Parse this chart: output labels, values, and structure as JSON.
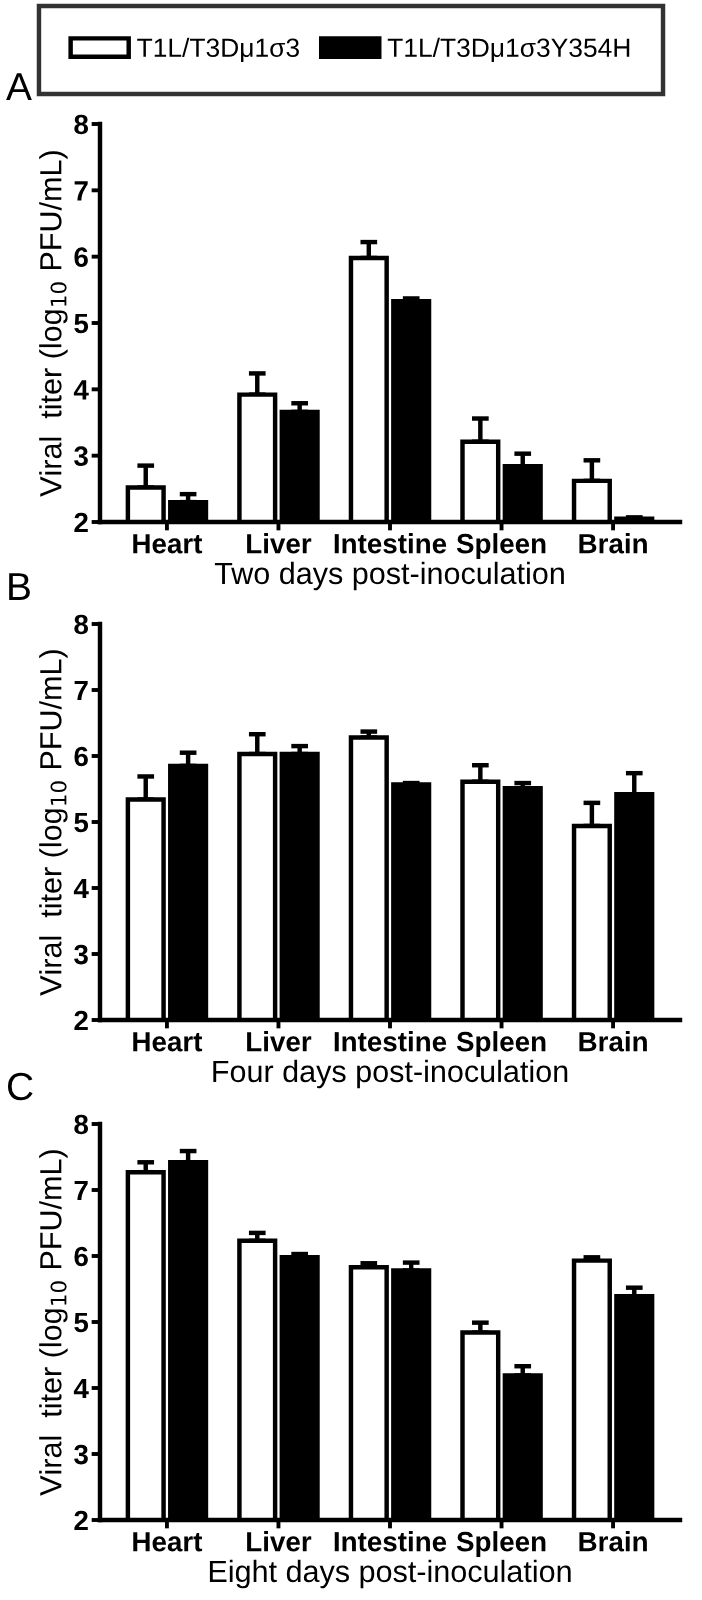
{
  "chart_data": [
    {
      "type": "bar",
      "annotations": [
        "A"
      ],
      "xlabel": "Two days post-inoculation",
      "ylabel": "Viral  titer (log$_{10}$ PFU/mL)",
      "categories": [
        "Heart",
        "Liver",
        "Intestine",
        "Spleen",
        "Brain"
      ],
      "ylim": [
        2,
        8
      ],
      "yticks": [
        2,
        3,
        4,
        5,
        6,
        7,
        8
      ],
      "grid": false,
      "legend": "top",
      "series": [
        {
          "name": "T1L/T3Dμ1σ3",
          "color": "#ffffff",
          "values": [
            2.52,
            3.92,
            5.98,
            3.21,
            2.62
          ],
          "errors": [
            [
              2.52,
              2.85
            ],
            [
              3.92,
              4.24
            ],
            [
              5.98,
              6.22
            ],
            [
              3.21,
              3.56
            ],
            [
              2.62,
              2.93
            ]
          ]
        },
        {
          "name": "T1L/T3Dμ1σ3Y354H",
          "color": "#000000",
          "values": [
            2.3,
            3.66,
            5.33,
            2.84,
            2.05
          ],
          "errors": [
            [
              2.3,
              2.42
            ],
            [
              3.66,
              3.79
            ],
            [
              5.33,
              5.37
            ],
            [
              2.84,
              3.03
            ],
            [
              2.05,
              2.07
            ]
          ]
        }
      ]
    },
    {
      "type": "bar",
      "annotations": [
        "B"
      ],
      "xlabel": "Four days post-inoculation",
      "ylabel": "Viral  titer (log$_{10}$ PFU/mL)",
      "categories": [
        "Heart",
        "Liver",
        "Intestine",
        "Spleen",
        "Brain"
      ],
      "ylim": [
        2,
        8
      ],
      "yticks": [
        2,
        3,
        4,
        5,
        6,
        7,
        8
      ],
      "grid": false,
      "series": [
        {
          "color": "#ffffff",
          "values": [
            5.34,
            6.03,
            6.28,
            5.61,
            4.94
          ],
          "errors": [
            [
              5.34,
              5.69
            ],
            [
              6.03,
              6.33
            ],
            [
              6.28,
              6.37
            ],
            [
              5.61,
              5.86
            ],
            [
              4.94,
              5.29
            ]
          ]
        },
        {
          "color": "#000000",
          "values": [
            5.85,
            6.03,
            5.57,
            5.51,
            5.42
          ],
          "errors": [
            [
              5.85,
              6.05
            ],
            [
              6.03,
              6.15
            ],
            [
              5.57,
              5.59
            ],
            [
              5.51,
              5.59
            ],
            [
              5.42,
              5.74
            ]
          ]
        }
      ]
    },
    {
      "type": "bar",
      "annotations": [
        "C"
      ],
      "xlabel": "Eight days post-inoculation",
      "ylabel": "Viral  titer (log$_{10}$ PFU/mL)",
      "categories": [
        "Heart",
        "Liver",
        "Intestine",
        "Spleen",
        "Brain"
      ],
      "ylim": [
        2,
        8
      ],
      "yticks": [
        2,
        3,
        4,
        5,
        6,
        7,
        8
      ],
      "grid": false,
      "series": [
        {
          "color": "#ffffff",
          "values": [
            7.27,
            6.23,
            5.83,
            4.84,
            5.93
          ],
          "errors": [
            [
              7.27,
              7.42
            ],
            [
              6.23,
              6.35
            ],
            [
              5.83,
              5.89
            ],
            [
              4.84,
              4.99
            ],
            [
              5.93,
              5.98
            ]
          ]
        },
        {
          "color": "#000000",
          "values": [
            7.42,
            5.98,
            5.78,
            4.19,
            5.39
          ],
          "errors": [
            [
              7.42,
              7.59
            ],
            [
              5.98,
              6.03
            ],
            [
              5.78,
              5.9
            ],
            [
              4.19,
              4.33
            ],
            [
              5.39,
              5.52
            ]
          ]
        }
      ]
    }
  ]
}
